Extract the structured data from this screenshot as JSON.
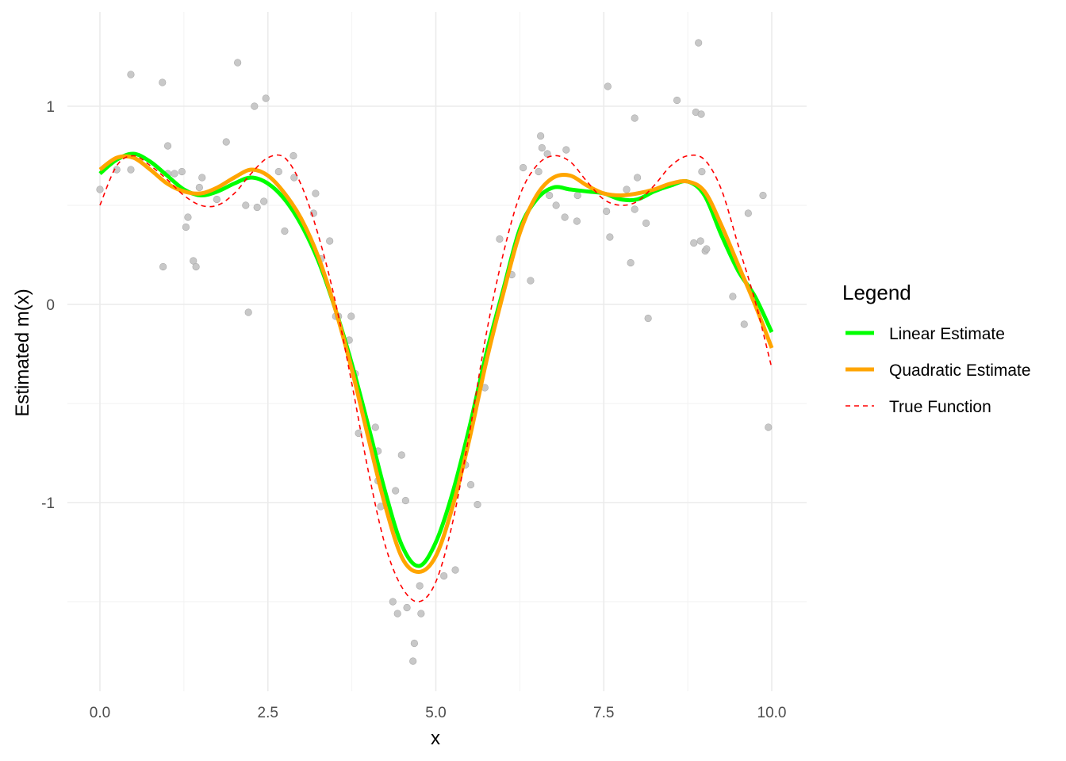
{
  "chart_data": {
    "type": "line",
    "title": "",
    "xlabel": "x",
    "ylabel": "Estimated m(x)",
    "xlim": [
      -0.5,
      10.5
    ],
    "ylim": [
      -1.95,
      1.47
    ],
    "x_ticks": [
      0,
      2.5,
      5,
      7.5,
      10
    ],
    "x_tick_labels": [
      "0.0",
      "2.5",
      "5.0",
      "7.5",
      "10.0"
    ],
    "y_ticks": [
      -1,
      0,
      1
    ],
    "y_tick_labels": [
      "-1",
      "0",
      "1"
    ],
    "grid": true,
    "legend": {
      "title": "Legend",
      "placement": "right",
      "entries": [
        "Linear Estimate",
        "Quadratic Estimate",
        "True Function"
      ]
    },
    "x": [
      0,
      0.25,
      0.5,
      0.75,
      1,
      1.25,
      1.5,
      1.75,
      2,
      2.25,
      2.5,
      2.75,
      3,
      3.25,
      3.5,
      3.75,
      4,
      4.25,
      4.5,
      4.75,
      5,
      5.25,
      5.5,
      5.75,
      6,
      6.25,
      6.5,
      6.75,
      7,
      7.25,
      7.5,
      7.75,
      8,
      8.25,
      8.5,
      8.75,
      9,
      9.25,
      9.5,
      9.75,
      10
    ],
    "series": [
      {
        "name": "Linear Estimate",
        "color": "#00ff00",
        "style": "solid",
        "values": [
          0.66,
          0.73,
          0.76,
          0.72,
          0.65,
          0.58,
          0.55,
          0.57,
          0.61,
          0.64,
          0.61,
          0.53,
          0.4,
          0.22,
          -0.02,
          -0.3,
          -0.62,
          -0.95,
          -1.22,
          -1.32,
          -1.2,
          -0.95,
          -0.62,
          -0.25,
          0.07,
          0.38,
          0.53,
          0.59,
          0.58,
          0.57,
          0.56,
          0.53,
          0.53,
          0.57,
          0.6,
          0.62,
          0.55,
          0.35,
          0.17,
          0.04,
          -0.14
        ]
      },
      {
        "name": "Quadratic Estimate",
        "color": "#ffa500",
        "style": "solid",
        "values": [
          0.68,
          0.74,
          0.74,
          0.68,
          0.61,
          0.57,
          0.56,
          0.59,
          0.64,
          0.68,
          0.65,
          0.56,
          0.43,
          0.24,
          -0.02,
          -0.33,
          -0.68,
          -1.02,
          -1.28,
          -1.35,
          -1.27,
          -1.02,
          -0.68,
          -0.29,
          0.05,
          0.36,
          0.55,
          0.64,
          0.65,
          0.6,
          0.56,
          0.55,
          0.56,
          0.58,
          0.61,
          0.62,
          0.57,
          0.4,
          0.2,
          0.0,
          -0.22
        ]
      },
      {
        "name": "True Function",
        "color": "#ff0000",
        "style": "dashed",
        "values": [
          0.5,
          0.7,
          0.75,
          0.7,
          0.63,
          0.55,
          0.5,
          0.5,
          0.56,
          0.66,
          0.74,
          0.74,
          0.6,
          0.35,
          0.02,
          -0.4,
          -0.85,
          -1.22,
          -1.43,
          -1.5,
          -1.4,
          -1.1,
          -0.65,
          -0.15,
          0.25,
          0.55,
          0.7,
          0.75,
          0.72,
          0.62,
          0.53,
          0.5,
          0.52,
          0.6,
          0.7,
          0.75,
          0.73,
          0.58,
          0.3,
          0.02,
          -0.32
        ]
      }
    ],
    "points": {
      "color": "#bebebe",
      "x": [
        0,
        0.25,
        0.46,
        0.46,
        0.93,
        0.94,
        1.01,
        1.01,
        1.11,
        1.22,
        1.28,
        1.31,
        1.39,
        1.43,
        1.48,
        1.52,
        1.74,
        1.88,
        2.05,
        2.17,
        2.21,
        2.3,
        2.34,
        2.44,
        2.47,
        2.66,
        2.75,
        2.88,
        2.89,
        3.18,
        3.21,
        3.29,
        3.42,
        3.51,
        3.55,
        3.74,
        3.71,
        3.8,
        3.85,
        4.1,
        4.14,
        4.49,
        4.14,
        4.4,
        4.55,
        4.18,
        4.76,
        4.36,
        4.43,
        4.57,
        4.78,
        4.68,
        4.66,
        5.12,
        5.29,
        5.44,
        5.52,
        5.62,
        5.73,
        5.95,
        6.13,
        6.41,
        6.3,
        6.53,
        6.56,
        6.58,
        6.66,
        6.69,
        6.79,
        6.92,
        7.1,
        6.94,
        7.11,
        7.56,
        7.54,
        7.59,
        7.84,
        7.96,
        8.0,
        7.9,
        7.96,
        8.13,
        8.16,
        8.59,
        8.91,
        8.87,
        8.95,
        8.96,
        8.84,
        8.94,
        9.01,
        9.03,
        9.42,
        9.59,
        9.65,
        9.87,
        9.95
      ],
      "y": [
        0.58,
        0.68,
        1.16,
        0.68,
        1.12,
        0.19,
        0.8,
        0.66,
        0.66,
        0.67,
        0.39,
        0.44,
        0.22,
        0.19,
        0.59,
        0.64,
        0.53,
        0.82,
        1.22,
        0.5,
        -0.04,
        1.0,
        0.49,
        0.52,
        1.04,
        0.67,
        0.37,
        0.75,
        0.64,
        0.46,
        0.56,
        0.23,
        0.32,
        -0.06,
        -0.06,
        -0.06,
        -0.18,
        -0.35,
        -0.65,
        -0.62,
        -0.74,
        -0.76,
        -0.89,
        -0.94,
        -0.99,
        -1.02,
        -1.42,
        -1.5,
        -1.56,
        -1.53,
        -1.56,
        -1.71,
        -1.8,
        -1.37,
        -1.34,
        -0.81,
        -0.91,
        -1.01,
        -0.42,
        0.33,
        0.15,
        0.12,
        0.69,
        0.67,
        0.85,
        0.79,
        0.76,
        0.55,
        0.5,
        0.44,
        0.42,
        0.78,
        0.55,
        1.1,
        0.47,
        0.34,
        0.58,
        0.48,
        0.64,
        0.21,
        0.94,
        0.41,
        -0.07,
        1.03,
        1.32,
        0.97,
        0.96,
        0.67,
        0.31,
        0.32,
        0.27,
        0.28,
        0.04,
        -0.1,
        0.46,
        0.55,
        -0.62
      ]
    }
  }
}
